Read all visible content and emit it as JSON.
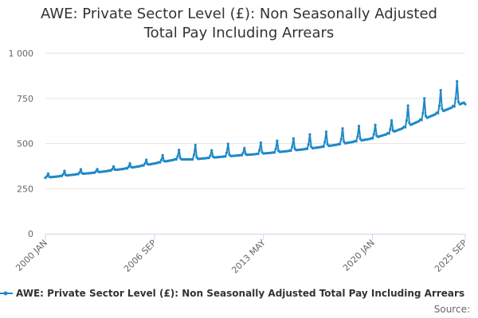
{
  "title_line1": "AWE: Private Sector Level (£): Non Seasonally Adjusted",
  "title_line2": "Total Pay Including Arrears",
  "source": "Source:",
  "colors": {
    "series": "#1f88c7",
    "grid": "#e6e6e6",
    "axis": "#ccd6eb"
  },
  "chart_data": {
    "type": "line",
    "title": "AWE: Private Sector Level (£): Non Seasonally Adjusted Total Pay Including Arrears",
    "xlabel": "",
    "ylabel": "",
    "x_range": [
      "2000 JAN",
      "2025 SEP"
    ],
    "x_ticks": [
      "2000 JAN",
      "2006 SEP",
      "2013 MAY",
      "2020 JAN",
      "2025 SEP"
    ],
    "y_ticks": [
      0,
      250,
      500,
      750,
      1000
    ],
    "y_tick_labels": [
      "0",
      "250",
      "500",
      "750",
      "1 000"
    ],
    "ylim": [
      0,
      1000
    ],
    "grid": true,
    "legend_position": "bottom",
    "series": [
      {
        "name": "AWE: Private Sector Level (£): Non Seasonally Adjusted Total Pay Including Arrears",
        "annual_base_january": [
          [
            2000,
            310
          ],
          [
            2001,
            320
          ],
          [
            2002,
            330
          ],
          [
            2003,
            338
          ],
          [
            2004,
            350
          ],
          [
            2005,
            362
          ],
          [
            2006,
            378
          ],
          [
            2007,
            395
          ],
          [
            2008,
            412
          ],
          [
            2009,
            412
          ],
          [
            2010,
            420
          ],
          [
            2011,
            428
          ],
          [
            2012,
            435
          ],
          [
            2013,
            442
          ],
          [
            2014,
            450
          ],
          [
            2015,
            460
          ],
          [
            2016,
            470
          ],
          [
            2017,
            482
          ],
          [
            2018,
            496
          ],
          [
            2019,
            512
          ],
          [
            2020,
            528
          ],
          [
            2021,
            555
          ],
          [
            2022,
            590
          ],
          [
            2023,
            630
          ],
          [
            2024,
            668
          ],
          [
            2025,
            705
          ]
        ],
        "march_bonus_peaks": [
          [
            2000,
            333
          ],
          [
            2001,
            348
          ],
          [
            2002,
            357
          ],
          [
            2003,
            358
          ],
          [
            2004,
            373
          ],
          [
            2005,
            390
          ],
          [
            2006,
            410
          ],
          [
            2007,
            435
          ],
          [
            2008,
            465
          ],
          [
            2009,
            492
          ],
          [
            2010,
            462
          ],
          [
            2011,
            498
          ],
          [
            2012,
            475
          ],
          [
            2013,
            505
          ],
          [
            2014,
            515
          ],
          [
            2015,
            528
          ],
          [
            2016,
            550
          ],
          [
            2017,
            565
          ],
          [
            2018,
            583
          ],
          [
            2019,
            597
          ],
          [
            2020,
            603
          ],
          [
            2021,
            628
          ],
          [
            2022,
            710
          ],
          [
            2023,
            750
          ],
          [
            2024,
            795
          ],
          [
            2025,
            845
          ]
        ],
        "last_value": [
          2025,
          718
        ]
      }
    ]
  }
}
